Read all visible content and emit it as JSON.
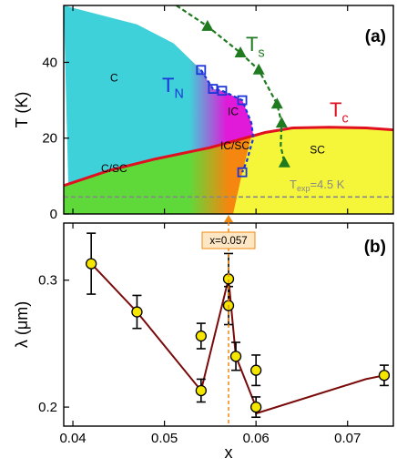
{
  "chart_data": [
    {
      "panel": "(a)",
      "type": "phase-diagram",
      "ylabel": "T (K)",
      "xlim": [
        0.039,
        0.075
      ],
      "ylim": [
        0,
        55
      ],
      "yticks": [
        0,
        20,
        40
      ],
      "regions": [
        {
          "label": "C",
          "x": 0.0445,
          "y": 35
        },
        {
          "label": "IC",
          "x": 0.0575,
          "y": 26
        },
        {
          "label": "IC/SC",
          "x": 0.0577,
          "y": 17
        },
        {
          "label": "C/SC",
          "x": 0.0445,
          "y": 11
        },
        {
          "label": "SC",
          "x": 0.0667,
          "y": 16
        }
      ],
      "curves": {
        "TN": {
          "label": "T",
          "sub": "N",
          "color": "#1c35d9",
          "points": [
            [
              0.054,
              38
            ],
            [
              0.0553,
              33
            ],
            [
              0.0563,
              32.5
            ],
            [
              0.0585,
              30
            ],
            [
              0.0595,
              24
            ],
            [
              0.0597,
              20
            ],
            [
              0.059,
              14
            ],
            [
              0.0585,
              11
            ]
          ]
        },
        "Ts": {
          "label": "T",
          "sub": "s",
          "color": "#207a20",
          "points": [
            [
              0.0513,
              55
            ],
            [
              0.0547,
              49.5
            ],
            [
              0.0583,
              42.5
            ],
            [
              0.0603,
              38
            ],
            [
              0.0623,
              29
            ],
            [
              0.0628,
              24
            ],
            [
              0.0627,
              18
            ],
            [
              0.0631,
              13.5
            ]
          ]
        },
        "Tc": {
          "label": "T",
          "sub": "c",
          "color": "#e01020",
          "points": [
            [
              0.039,
              7.5
            ],
            [
              0.044,
              11.5
            ],
            [
              0.049,
              14.5
            ],
            [
              0.055,
              17.5
            ],
            [
              0.058,
              19.5
            ],
            [
              0.061,
              21.5
            ],
            [
              0.064,
              22.7
            ],
            [
              0.068,
              22.9
            ],
            [
              0.072,
              22.7
            ],
            [
              0.075,
              22.2
            ]
          ]
        }
      },
      "ts_markers": [
        [
          0.0547,
          49.5
        ],
        [
          0.0583,
          42.5
        ],
        [
          0.0603,
          38
        ],
        [
          0.0623,
          29
        ],
        [
          0.0628,
          24
        ],
        [
          0.0631,
          13.5
        ]
      ],
      "tn_markers": [
        [
          0.054,
          38
        ],
        [
          0.0553,
          33
        ],
        [
          0.0563,
          32.5
        ],
        [
          0.0585,
          30
        ],
        [
          0.0585,
          11
        ]
      ],
      "texp": {
        "value": 4.5,
        "label_main": "T",
        "label_sub": "exp",
        "label_rest": "=4.5 K",
        "color": "#888888"
      },
      "marker_line": {
        "x": 0.057,
        "label": "x=0.057",
        "color": "#f08a10"
      }
    },
    {
      "panel": "(b)",
      "type": "scatter",
      "xlabel": "x",
      "ylabel": "λ (μm)",
      "xlim": [
        0.039,
        0.075
      ],
      "ylim": [
        0.185,
        0.345
      ],
      "xticks": [
        0.04,
        0.05,
        0.06,
        0.07
      ],
      "xtick_labels": [
        "0.04",
        "0.05",
        "0.06",
        "0.07"
      ],
      "yticks": [
        0.2,
        0.3
      ],
      "ytick_labels": [
        "0.2",
        "0.3"
      ],
      "series": [
        {
          "color": "#7a0a0a",
          "marker_fill": "#f5e600",
          "points": [
            {
              "x": 0.042,
              "y": 0.313,
              "err": 0.024
            },
            {
              "x": 0.047,
              "y": 0.275,
              "err": 0.013
            },
            {
              "x": 0.054,
              "y": 0.213,
              "err": 0.009
            },
            {
              "x": 0.054,
              "y": 0.256,
              "err": 0.01
            },
            {
              "x": 0.057,
              "y": 0.301,
              "err": 0.02
            },
            {
              "x": 0.057,
              "y": 0.28,
              "err": 0.015
            },
            {
              "x": 0.0578,
              "y": 0.24,
              "err": 0.011
            },
            {
              "x": 0.06,
              "y": 0.2,
              "err": 0.008
            },
            {
              "x": 0.06,
              "y": 0.229,
              "err": 0.012
            },
            {
              "x": 0.074,
              "y": 0.225,
              "err": 0.008
            }
          ],
          "line": [
            [
              0.042,
              0.313
            ],
            [
              0.047,
              0.275
            ],
            [
              0.054,
              0.213
            ],
            [
              0.057,
              0.301
            ],
            [
              0.0578,
              0.24
            ],
            [
              0.06,
              0.2
            ],
            [
              0.06,
              0.195
            ],
            [
              0.072,
              0.222
            ],
            [
              0.074,
              0.225
            ]
          ]
        }
      ]
    }
  ]
}
